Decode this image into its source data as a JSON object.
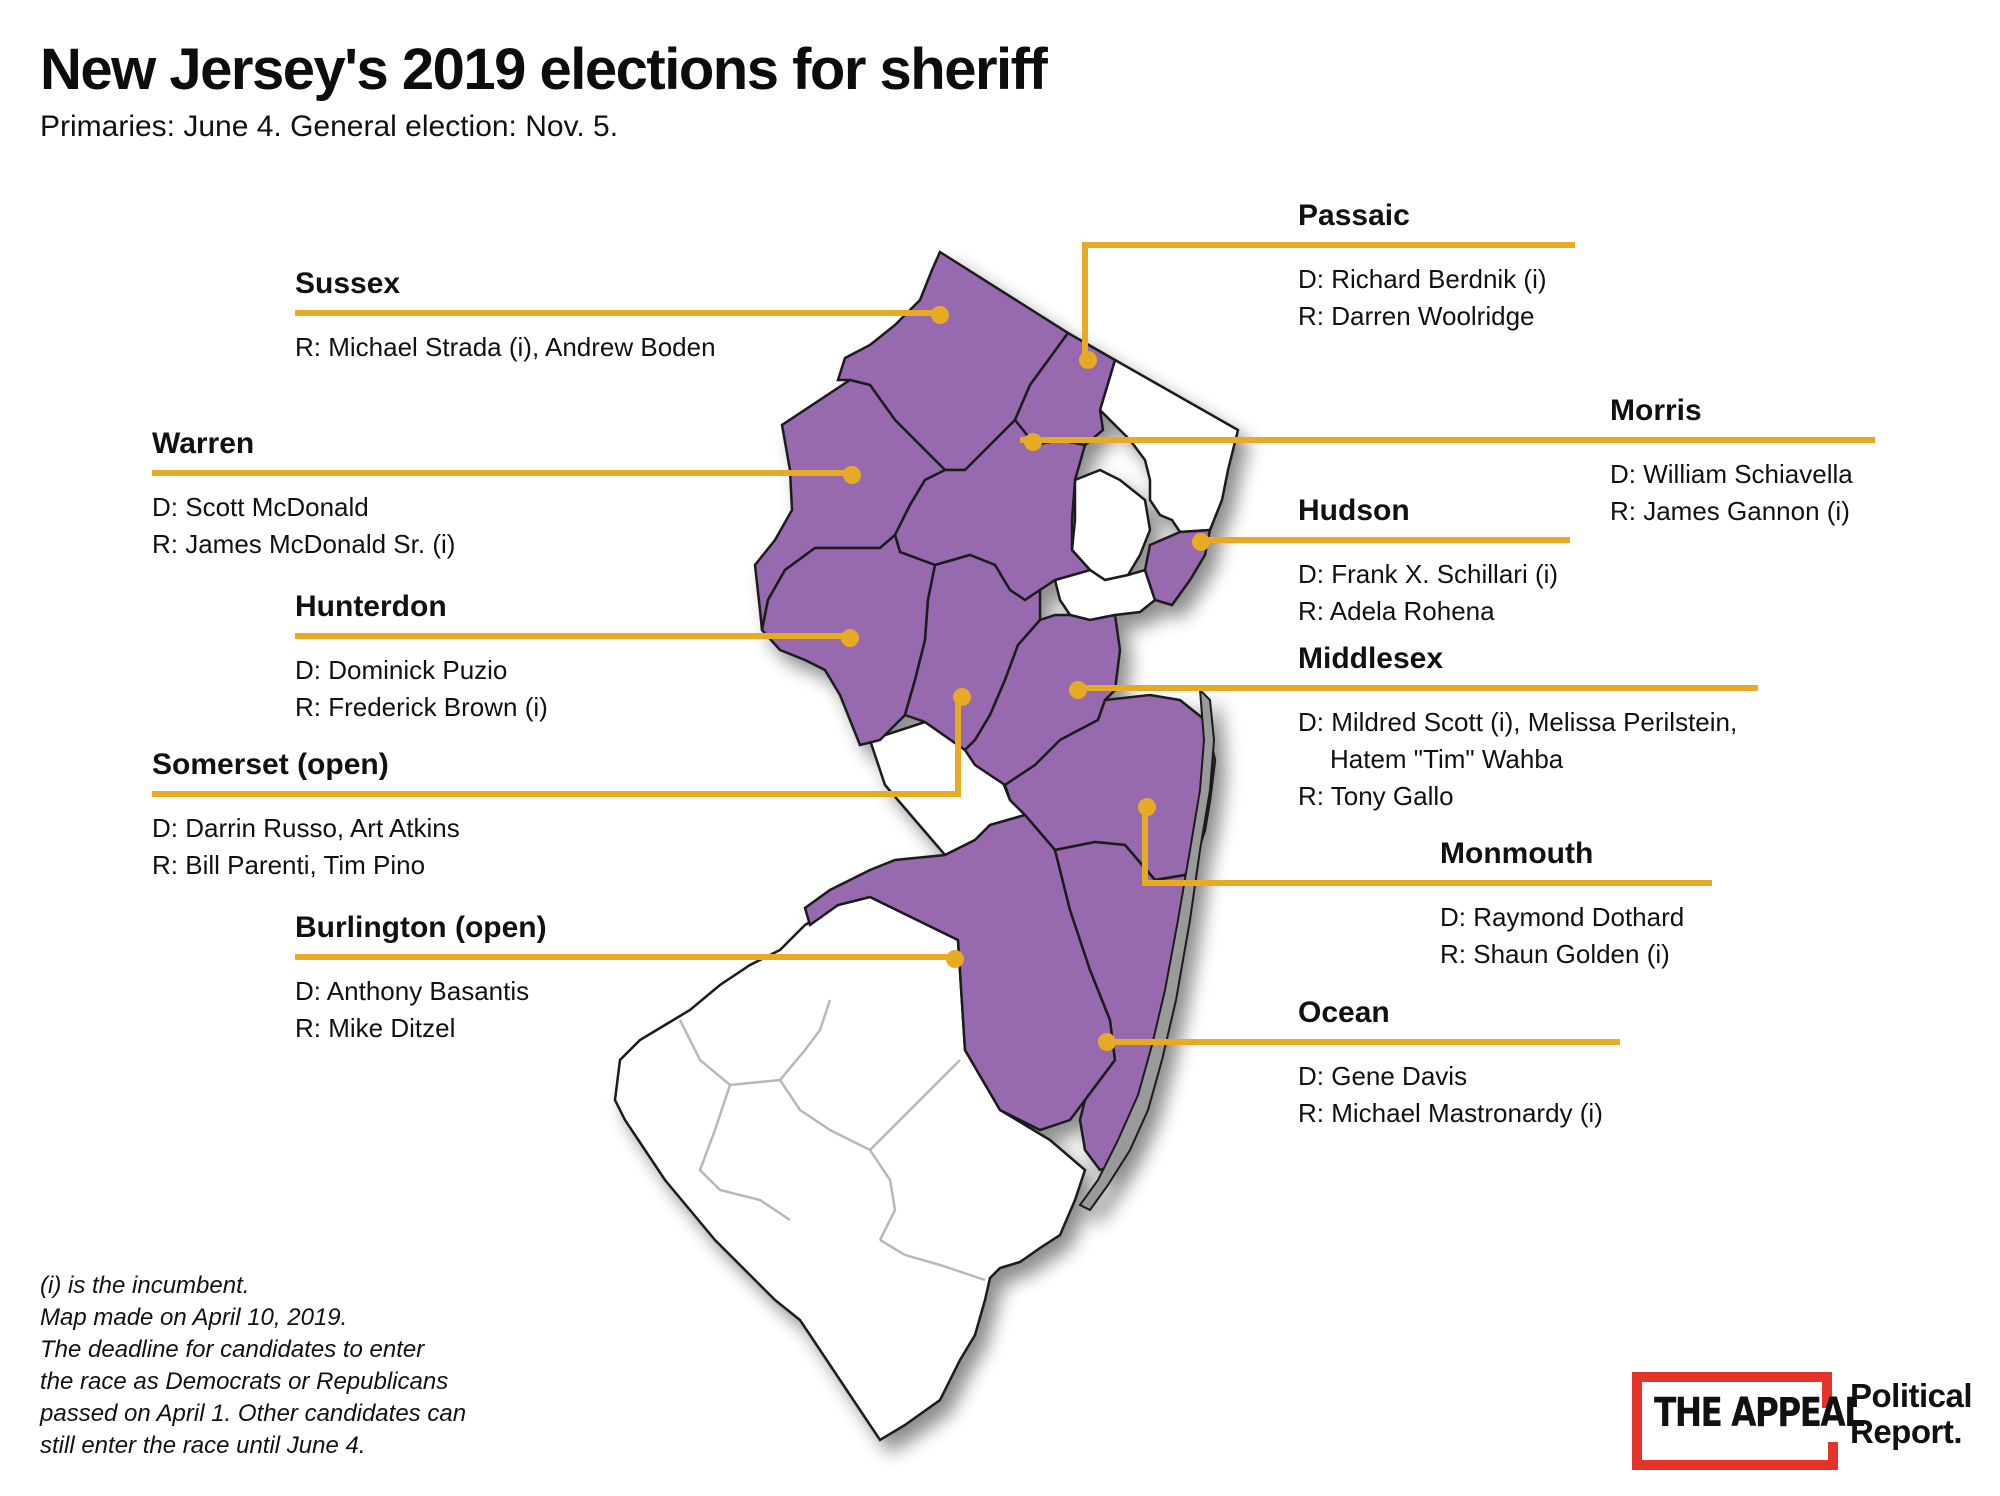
{
  "title": "New Jersey's 2019 elections for sheriff",
  "subtitle": "Primaries: June 4. General election: Nov. 5.",
  "colors": {
    "election_county": "#976bb0",
    "no_election_county": "#ffffff",
    "leader_line": "#e7aa24",
    "logo_red": "#e4342a"
  },
  "counties": {
    "sussex": {
      "name": "Sussex",
      "lines": [
        "R: Michael Strada (i), Andrew Boden"
      ]
    },
    "passaic": {
      "name": "Passaic",
      "lines": [
        "D: Richard Berdnik (i)",
        "R: Darren Woolridge"
      ]
    },
    "warren": {
      "name": "Warren",
      "lines": [
        "D: Scott McDonald",
        "R: James McDonald Sr. (i)"
      ]
    },
    "morris": {
      "name": "Morris",
      "lines": [
        "D: William Schiavella",
        "R: James Gannon (i)"
      ]
    },
    "hudson": {
      "name": "Hudson",
      "lines": [
        "D: Frank X. Schillari (i)",
        "R: Adela Rohena"
      ]
    },
    "hunterdon": {
      "name": "Hunterdon",
      "lines": [
        "D: Dominick Puzio",
        "R: Frederick Brown (i)"
      ]
    },
    "middlesex": {
      "name": "Middlesex",
      "lines": [
        "D: Mildred Scott (i), Melissa Perilstein,",
        "Hatem \"Tim\" Wahba",
        "R: Tony Gallo"
      ]
    },
    "somerset": {
      "name": "Somerset (open)",
      "lines": [
        "D: Darrin Russo, Art Atkins",
        "R: Bill Parenti, Tim Pino"
      ]
    },
    "monmouth": {
      "name": "Monmouth",
      "lines": [
        "D: Raymond Dothard",
        "R: Shaun Golden (i)"
      ]
    },
    "burlington": {
      "name": "Burlington (open)",
      "lines": [
        "D: Anthony Basantis",
        "R: Mike Ditzel"
      ]
    },
    "ocean": {
      "name": "Ocean",
      "lines": [
        "D: Gene Davis",
        "R: Michael Mastronardy (i)"
      ]
    }
  },
  "footnote": [
    "(i) is the incumbent.",
    "Map made on April 10, 2019.",
    "The deadline for candidates to enter",
    "the race as Democrats or Republicans",
    "passed on April 1. Other candidates can",
    "still enter the race until June 4."
  ],
  "logo": {
    "main": "THE APPEAL",
    "line1": "Political",
    "line2": "Report."
  }
}
